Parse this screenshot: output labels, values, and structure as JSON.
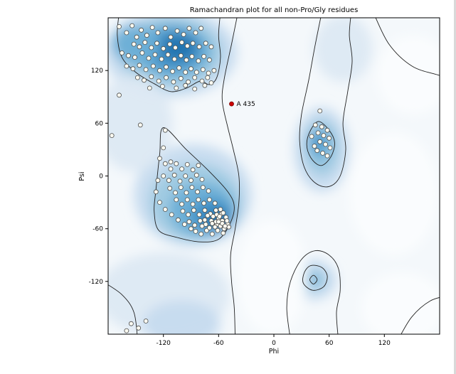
{
  "chart_data": {
    "type": "scatter",
    "title": "Ramachandran plot for all non-Pro/Gly residues",
    "xlabel": "Phi",
    "ylabel": "Psi",
    "xlim": [
      -180,
      180
    ],
    "ylim": [
      -180,
      180
    ],
    "xticks": [
      -120,
      -60,
      0,
      60,
      120
    ],
    "yticks": [
      120,
      60,
      0,
      -60,
      -120
    ],
    "grid": false,
    "legend": "none",
    "colors": {
      "plot_bg": "#f4f8fb",
      "contour": "#222222",
      "point_fill": "#fcfcf2",
      "point_stroke": "#4d4d4d",
      "highlight": "#cc0000",
      "density_levels": [
        "#fbfdfe",
        "#dde9f3",
        "#c6dbef",
        "#9ecae1",
        "#6baed6",
        "#4191c6",
        "#2373af"
      ]
    },
    "regions": [
      {
        "name": "beta-sheet",
        "center": [
          -112,
          140
        ]
      },
      {
        "name": "alpha-helix",
        "center": [
          -70,
          -35
        ]
      },
      {
        "name": "left-handed-alpha",
        "center": [
          50,
          38
        ]
      },
      {
        "name": "lower-right-allowed",
        "center": [
          42,
          -118
        ]
      }
    ],
    "highlighted": {
      "label": "A 435",
      "phi": -46,
      "psi": 82
    },
    "points": [
      [
        -168,
        170
      ],
      [
        -160,
        163
      ],
      [
        -154,
        171
      ],
      [
        -149,
        158
      ],
      [
        -144,
        166
      ],
      [
        -138,
        160
      ],
      [
        -132,
        169
      ],
      [
        -126,
        163
      ],
      [
        -118,
        168
      ],
      [
        -112,
        158
      ],
      [
        -105,
        165
      ],
      [
        -98,
        161
      ],
      [
        -92,
        168
      ],
      [
        -85,
        163
      ],
      [
        -79,
        168
      ],
      [
        -152,
        150
      ],
      [
        -146,
        147
      ],
      [
        -140,
        152
      ],
      [
        -133,
        146
      ],
      [
        -127,
        151
      ],
      [
        -120,
        145
      ],
      [
        -113,
        150
      ],
      [
        -107,
        146
      ],
      [
        -100,
        152
      ],
      [
        -94,
        148
      ],
      [
        -88,
        151
      ],
      [
        -81,
        147
      ],
      [
        -74,
        151
      ],
      [
        -68,
        147
      ],
      [
        -165,
        140
      ],
      [
        -158,
        137
      ],
      [
        -151,
        135
      ],
      [
        -143,
        140
      ],
      [
        -136,
        134
      ],
      [
        -129,
        138
      ],
      [
        -122,
        133
      ],
      [
        -115,
        138
      ],
      [
        -108,
        133
      ],
      [
        -101,
        137
      ],
      [
        -95,
        132
      ],
      [
        -89,
        136
      ],
      [
        -82,
        131
      ],
      [
        -76,
        136
      ],
      [
        -70,
        132
      ],
      [
        -160,
        125
      ],
      [
        -153,
        122
      ],
      [
        -146,
        126
      ],
      [
        -139,
        121
      ],
      [
        -131,
        125
      ],
      [
        -124,
        120
      ],
      [
        -117,
        124
      ],
      [
        -110,
        119
      ],
      [
        -103,
        123
      ],
      [
        -96,
        118
      ],
      [
        -90,
        122
      ],
      [
        -84,
        118
      ],
      [
        -77,
        121
      ],
      [
        -71,
        117
      ],
      [
        -65,
        120
      ],
      [
        -148,
        112
      ],
      [
        -141,
        109
      ],
      [
        -133,
        113
      ],
      [
        -125,
        108
      ],
      [
        -117,
        112
      ],
      [
        -109,
        107
      ],
      [
        -101,
        111
      ],
      [
        -93,
        107
      ],
      [
        -86,
        112
      ],
      [
        -78,
        108
      ],
      [
        -72,
        112
      ],
      [
        -135,
        100
      ],
      [
        -121,
        102
      ],
      [
        -106,
        100
      ],
      [
        -96,
        103
      ],
      [
        -86,
        99
      ],
      [
        -75,
        103
      ],
      [
        -68,
        106
      ],
      [
        -168,
        92
      ],
      [
        -176,
        46
      ],
      [
        -145,
        58
      ],
      [
        -118,
        52
      ],
      [
        -120,
        32
      ],
      [
        -112,
        16
      ],
      [
        -124,
        20
      ],
      [
        -118,
        14
      ],
      [
        -112,
        8
      ],
      [
        -106,
        14
      ],
      [
        -100,
        8
      ],
      [
        -94,
        13
      ],
      [
        -88,
        7
      ],
      [
        -82,
        12
      ],
      [
        -120,
        0
      ],
      [
        -114,
        -5
      ],
      [
        -108,
        1
      ],
      [
        -102,
        -6
      ],
      [
        -96,
        0
      ],
      [
        -90,
        -5
      ],
      [
        -84,
        1
      ],
      [
        -78,
        -4
      ],
      [
        -113,
        -14
      ],
      [
        -107,
        -19
      ],
      [
        -101,
        -13
      ],
      [
        -95,
        -19
      ],
      [
        -89,
        -13
      ],
      [
        -83,
        -18
      ],
      [
        -77,
        -13
      ],
      [
        -71,
        -17
      ],
      [
        -106,
        -27
      ],
      [
        -100,
        -32
      ],
      [
        -94,
        -27
      ],
      [
        -88,
        -32
      ],
      [
        -82,
        -27
      ],
      [
        -76,
        -31
      ],
      [
        -70,
        -27
      ],
      [
        -64,
        -31
      ],
      [
        -99,
        -40
      ],
      [
        -93,
        -44
      ],
      [
        -87,
        -39
      ],
      [
        -81,
        -44
      ],
      [
        -75,
        -39
      ],
      [
        -69,
        -43
      ],
      [
        -63,
        -39
      ],
      [
        -57,
        -43
      ],
      [
        -92,
        -52
      ],
      [
        -86,
        -56
      ],
      [
        -80,
        -51
      ],
      [
        -74,
        -55
      ],
      [
        -68,
        -51
      ],
      [
        -62,
        -55
      ],
      [
        -56,
        -51
      ],
      [
        -50,
        -55
      ],
      [
        -85,
        -63
      ],
      [
        -79,
        -66
      ],
      [
        -73,
        -62
      ],
      [
        -67,
        -66
      ],
      [
        -61,
        -62
      ],
      [
        -55,
        -65
      ],
      [
        -66,
        -46
      ],
      [
        -60,
        -48
      ],
      [
        -58,
        -57
      ],
      [
        -54,
        -60
      ],
      [
        -52,
        -47
      ],
      [
        -64,
        -58
      ],
      [
        -70,
        -59
      ],
      [
        -62,
        -44
      ],
      [
        -58,
        -38
      ],
      [
        -55,
        -42
      ],
      [
        -51,
        -51
      ],
      [
        -49,
        -58
      ],
      [
        -63,
        -52
      ],
      [
        -67,
        -54
      ],
      [
        -59,
        -46
      ],
      [
        -56,
        -54
      ],
      [
        -53,
        -57
      ],
      [
        -60,
        -52
      ],
      [
        -72,
        -45
      ],
      [
        -75,
        -50
      ],
      [
        -78,
        -57
      ],
      [
        -90,
        -60
      ],
      [
        -97,
        -55
      ],
      [
        -104,
        -50
      ],
      [
        -111,
        -44
      ],
      [
        -118,
        -38
      ],
      [
        -124,
        -30
      ],
      [
        -128,
        -18
      ],
      [
        -126,
        -5
      ],
      [
        50,
        74
      ],
      [
        45,
        58
      ],
      [
        52,
        56
      ],
      [
        58,
        52
      ],
      [
        48,
        49
      ],
      [
        54,
        46
      ],
      [
        60,
        43
      ],
      [
        50,
        39
      ],
      [
        56,
        36
      ],
      [
        61,
        32
      ],
      [
        47,
        29
      ],
      [
        53,
        26
      ],
      [
        58,
        23
      ],
      [
        44,
        34
      ],
      [
        41,
        45
      ],
      [
        -155,
        -168
      ],
      [
        -147,
        -173
      ],
      [
        -139,
        -165
      ],
      [
        -160,
        -176
      ]
    ],
    "density": [
      {
        "c": [
          -112,
          140
        ],
        "r": [
          72,
          50
        ],
        "level": 2
      },
      {
        "c": [
          -112,
          141
        ],
        "r": [
          56,
          40
        ],
        "level": 3
      },
      {
        "c": [
          -111,
          142
        ],
        "r": [
          43,
          31
        ],
        "level": 4
      },
      {
        "c": [
          -109,
          144
        ],
        "r": [
          31,
          23
        ],
        "level": 5
      },
      {
        "c": [
          -104,
          146
        ],
        "r": [
          19,
          14
        ],
        "level": 6
      },
      {
        "c": [
          -150,
          150
        ],
        "r": [
          26,
          22
        ],
        "level": 4
      },
      {
        "c": [
          -88,
          -22
        ],
        "r": [
          64,
          58
        ],
        "level": 2
      },
      {
        "c": [
          -85,
          -30
        ],
        "r": [
          50,
          44
        ],
        "level": 3
      },
      {
        "c": [
          -78,
          -38
        ],
        "r": [
          36,
          31
        ],
        "level": 4
      },
      {
        "c": [
          -68,
          -45
        ],
        "r": [
          23,
          19
        ],
        "level": 5
      },
      {
        "c": [
          -62,
          -48
        ],
        "r": [
          13,
          10
        ],
        "level": 6
      },
      {
        "c": [
          52,
          30
        ],
        "r": [
          30,
          48
        ],
        "level": 2
      },
      {
        "c": [
          52,
          32
        ],
        "r": [
          19,
          32
        ],
        "level": 3
      },
      {
        "c": [
          50,
          36
        ],
        "r": [
          12,
          19
        ],
        "level": 4
      },
      {
        "c": [
          48,
          39
        ],
        "r": [
          7,
          10
        ],
        "level": 5
      },
      {
        "c": [
          42,
          -118
        ],
        "r": [
          26,
          23
        ],
        "level": 2
      },
      {
        "c": [
          42,
          -118
        ],
        "r": [
          14,
          12
        ],
        "level": 3
      },
      {
        "c": [
          43,
          -118
        ],
        "r": [
          7,
          6
        ],
        "level": 4
      },
      {
        "c": [
          -120,
          -135
        ],
        "r": [
          72,
          48
        ],
        "level": 1
      },
      {
        "c": [
          -100,
          -168
        ],
        "r": [
          42,
          26
        ],
        "level": 2
      },
      {
        "c": [
          -152,
          60
        ],
        "r": [
          42,
          55
        ],
        "level": 1
      },
      {
        "c": [
          75,
          145
        ],
        "r": [
          32,
          38
        ],
        "level": 1
      },
      {
        "c": [
          130,
          -20
        ],
        "r": [
          48,
          70
        ],
        "level": 0
      },
      {
        "c": [
          152,
          115
        ],
        "r": [
          40,
          45
        ],
        "level": 0
      },
      {
        "c": [
          -2,
          -115
        ],
        "r": [
          38,
          65
        ],
        "level": 0
      },
      {
        "c": [
          140,
          -150
        ],
        "r": [
          45,
          40
        ],
        "level": 0
      }
    ],
    "contours": [
      {
        "name": "outer-left",
        "closed": false,
        "points": [
          [
            -39,
            186
          ],
          [
            -46,
            150
          ],
          [
            -54,
            110
          ],
          [
            -56,
            85
          ],
          [
            -50,
            55
          ],
          [
            -44,
            30
          ],
          [
            -38,
            0
          ],
          [
            -38,
            -30
          ],
          [
            -42,
            -60
          ],
          [
            -47,
            -90
          ],
          [
            -46,
            -120
          ],
          [
            -43,
            -150
          ],
          [
            -42,
            -186
          ]
        ]
      },
      {
        "name": "beta-inner",
        "closed": false,
        "points": [
          [
            -168,
            186
          ],
          [
            -170,
            160
          ],
          [
            -165,
            135
          ],
          [
            -150,
            118
          ],
          [
            -130,
            105
          ],
          [
            -112,
            96
          ],
          [
            -95,
            100
          ],
          [
            -80,
            108
          ],
          [
            -70,
            104
          ],
          [
            -62,
            112
          ],
          [
            -58,
            135
          ],
          [
            -60,
            160
          ],
          [
            -58,
            186
          ]
        ]
      },
      {
        "name": "alpha-inner",
        "closed": true,
        "points": [
          [
            -120,
            55
          ],
          [
            -95,
            30
          ],
          [
            -70,
            5
          ],
          [
            -50,
            -18
          ],
          [
            -43,
            -35
          ],
          [
            -48,
            -55
          ],
          [
            -60,
            -72
          ],
          [
            -80,
            -75
          ],
          [
            -105,
            -70
          ],
          [
            -125,
            -62
          ],
          [
            -130,
            -40
          ],
          [
            -128,
            -15
          ],
          [
            -124,
            25
          ]
        ]
      },
      {
        "name": "right-outer",
        "closed": false,
        "points": [
          [
            52,
            186
          ],
          [
            45,
            150
          ],
          [
            38,
            110
          ],
          [
            30,
            70
          ],
          [
            28,
            40
          ],
          [
            33,
            10
          ],
          [
            45,
            -8
          ],
          [
            60,
            -12
          ],
          [
            72,
            0
          ],
          [
            78,
            30
          ],
          [
            75,
            60
          ],
          [
            80,
            95
          ],
          [
            85,
            130
          ],
          [
            82,
            160
          ],
          [
            84,
            186
          ]
        ]
      },
      {
        "name": "left-handed-inner",
        "closed": true,
        "points": [
          [
            48,
            62
          ],
          [
            60,
            52
          ],
          [
            66,
            38
          ],
          [
            62,
            22
          ],
          [
            52,
            12
          ],
          [
            42,
            18
          ],
          [
            36,
            32
          ],
          [
            38,
            48
          ]
        ]
      },
      {
        "name": "lower-right-outer",
        "closed": false,
        "points": [
          [
            18,
            -186
          ],
          [
            14,
            -150
          ],
          [
            18,
            -120
          ],
          [
            30,
            -95
          ],
          [
            45,
            -85
          ],
          [
            60,
            -90
          ],
          [
            70,
            -105
          ],
          [
            72,
            -130
          ],
          [
            68,
            -155
          ],
          [
            70,
            -186
          ]
        ]
      },
      {
        "name": "lower-right-inner",
        "closed": true,
        "points": [
          [
            40,
            -102
          ],
          [
            52,
            -104
          ],
          [
            58,
            -114
          ],
          [
            54,
            -126
          ],
          [
            42,
            -130
          ],
          [
            32,
            -122
          ],
          [
            33,
            -110
          ]
        ]
      },
      {
        "name": "lower-right-core",
        "closed": true,
        "points": [
          [
            43,
            -113
          ],
          [
            47,
            -118
          ],
          [
            43,
            -123
          ],
          [
            39,
            -118
          ]
        ]
      },
      {
        "name": "top-right-arc",
        "closed": false,
        "points": [
          [
            108,
            186
          ],
          [
            125,
            150
          ],
          [
            150,
            125
          ],
          [
            178,
            115
          ],
          [
            192,
            110
          ]
        ]
      },
      {
        "name": "bottom-left-arc",
        "closed": false,
        "points": [
          [
            -186,
            -120
          ],
          [
            -165,
            -135
          ],
          [
            -152,
            -155
          ],
          [
            -148,
            -186
          ]
        ]
      },
      {
        "name": "bottom-right-arc",
        "closed": false,
        "points": [
          [
            135,
            -186
          ],
          [
            150,
            -160
          ],
          [
            170,
            -142
          ],
          [
            190,
            -136
          ]
        ]
      }
    ]
  }
}
